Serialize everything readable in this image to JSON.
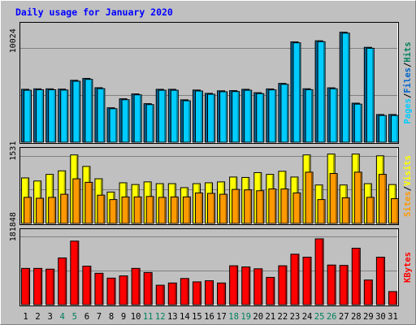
{
  "chart_data": {
    "type": "bar",
    "title": "Daily usage for January 2020",
    "categories": [
      "1",
      "2",
      "3",
      "4",
      "5",
      "6",
      "7",
      "8",
      "9",
      "10",
      "11",
      "12",
      "13",
      "14",
      "15",
      "16",
      "17",
      "18",
      "19",
      "20",
      "21",
      "22",
      "23",
      "24",
      "25",
      "26",
      "27",
      "28",
      "29",
      "30",
      "31"
    ],
    "weekend_days": [
      "4",
      "5",
      "11",
      "12",
      "18",
      "19",
      "25",
      "26"
    ],
    "panels": [
      {
        "id": "hits-files-pages",
        "ylabel_parts": [
          "Pages",
          "Files",
          "Hits"
        ],
        "ytick_label": "10024",
        "ymax": 10024,
        "ylim": [
          0,
          12740
        ],
        "series": [
          {
            "name": "Hits",
            "color": "#006699",
            "values": [
              5640,
              5690,
              5690,
              5660,
              6600,
              6800,
              5810,
              3670,
              4630,
              5150,
              4110,
              5640,
              5640,
              4520,
              5560,
              5210,
              5480,
              5500,
              5640,
              5280,
              5680,
              6270,
              10700,
              5700,
              10820,
              5800,
              11730,
              4160,
              10120,
              2950,
              2950
            ]
          },
          {
            "name": "Files",
            "color": "#00ccff",
            "values": [
              5540,
              5590,
              5590,
              5560,
              6500,
              6700,
              5710,
              3570,
              4530,
              5050,
              4010,
              5540,
              5540,
              4420,
              5460,
              5110,
              5380,
              5400,
              5540,
              5180,
              5580,
              6170,
              10600,
              5600,
              10720,
              5700,
              11630,
              4060,
              10020,
              2850,
              2850
            ]
          }
        ]
      },
      {
        "id": "visits-sites",
        "ylabel_parts": [
          "Sites",
          "Visits"
        ],
        "ytick_label": "1531",
        "ymax": 1531,
        "ylim": [
          0,
          1710
        ],
        "series": [
          {
            "name": "Visits",
            "color": "#ffff00",
            "values": [
              1030,
              960,
              1110,
              1190,
              1550,
              1290,
              1010,
              710,
              920,
              880,
              940,
              900,
              900,
              810,
              900,
              920,
              940,
              1050,
              1040,
              1150,
              1110,
              1180,
              1050,
              1550,
              870,
              1570,
              870,
              1570,
              900,
              1530,
              880
            ]
          },
          {
            "name": "Sites",
            "color": "#ff9900",
            "values": [
              590,
              570,
              590,
              660,
              1010,
              930,
              640,
              540,
              600,
              600,
              610,
              590,
              600,
              600,
              690,
              680,
              660,
              770,
              760,
              740,
              780,
              780,
              690,
              1160,
              540,
              1130,
              580,
              1160,
              590,
              1110,
              560
            ]
          }
        ]
      },
      {
        "id": "kbytes",
        "ylabel_parts": [
          "KBytes"
        ],
        "ytick_label": "181848",
        "ymax": 181848,
        "ylim": [
          0,
          202000
        ],
        "series": [
          {
            "name": "KBytes",
            "color": "#ff0000",
            "values": [
              97000,
              97000,
              95000,
              125000,
              170000,
              103000,
              84000,
              71000,
              77000,
              97000,
              86000,
              52000,
              58000,
              70000,
              61000,
              64000,
              58000,
              104000,
              101000,
              96000,
              73000,
              104000,
              135000,
              127000,
              176000,
              106000,
              105000,
              151000,
              66000,
              127000,
              35000
            ]
          }
        ]
      }
    ]
  },
  "colors": {
    "background": "#c0c0c0",
    "plot_bg": "#c0c0c0",
    "title": "#0000ff",
    "weekday_label": "#000000",
    "weekend_label": "#00805c",
    "separator": "#000000"
  }
}
